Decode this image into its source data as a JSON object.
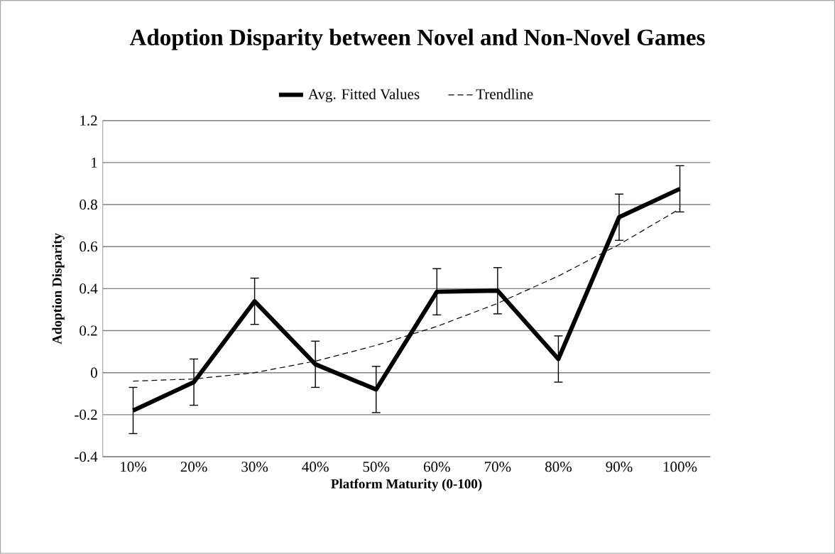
{
  "chart_data": {
    "type": "line",
    "title": "Adoption Disparity between Novel and Non-Novel Games",
    "xlabel": "Platform Maturity (0-100)",
    "ylabel": "Adoption Disparity",
    "categories": [
      "10%",
      "20%",
      "30%",
      "40%",
      "50%",
      "60%",
      "70%",
      "80%",
      "90%",
      "100%"
    ],
    "ylim": [
      -0.4,
      1.2
    ],
    "yticks": [
      -0.4,
      -0.2,
      0,
      0.2,
      0.4,
      0.6,
      0.8,
      1,
      1.2
    ],
    "grid": "y",
    "legend": "top",
    "marker": "none",
    "series": [
      {
        "name": "Avg. Fitted Values",
        "color": "#000000",
        "line_style": "solid",
        "values": [
          -0.18,
          -0.045,
          0.34,
          0.04,
          -0.08,
          0.385,
          0.39,
          0.065,
          0.74,
          0.875
        ],
        "errors": [
          0.11,
          0.11,
          0.11,
          0.11,
          0.11,
          0.11,
          0.11,
          0.11,
          0.11,
          0.11
        ]
      },
      {
        "name": "Trendline",
        "color": "#000000",
        "line_style": "dashed",
        "values": [
          -0.04,
          -0.03,
          0.0,
          0.055,
          0.13,
          0.22,
          0.33,
          0.46,
          0.61,
          0.78
        ]
      }
    ]
  }
}
